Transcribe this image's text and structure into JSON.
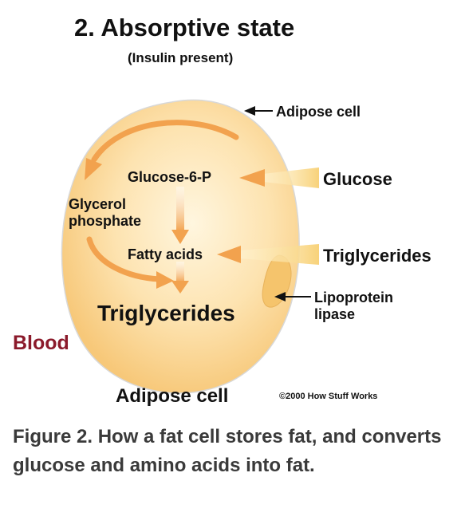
{
  "title": "2. Absorptive state",
  "subtitle": "(Insulin present)",
  "labels": {
    "adipose_cell_top": "Adipose cell",
    "glucose": "Glucose",
    "glucose_6_p": "Glucose-6-P",
    "glycerol_line1": "Glycerol",
    "glycerol_line2": "phosphate",
    "fatty_acids": "Fatty acids",
    "triglycerides_in": "Triglycerides",
    "lipoprotein_line1": "Lipoprotein",
    "lipoprotein_line2": "lipase",
    "triglycerides_cell": "Triglycerides",
    "blood": "Blood",
    "adipose_cell_bottom": "Adipose cell",
    "copyright": "©2000 How Stuff Works"
  },
  "colors": {
    "cell_fill": "#fbd48f",
    "cell_center": "#fff3d6",
    "arrow": "#f2a24e",
    "blood": "#8b1a2b",
    "caption": "#3a3a3a"
  },
  "caption": "Figure 2. How a fat cell stores fat, and converts glucose and amino acids into fat."
}
